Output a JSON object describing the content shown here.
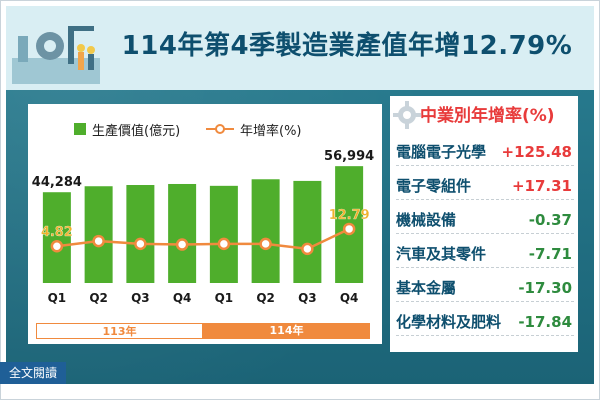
{
  "title": "114年第4季製造業產值年增12.79%",
  "legend": {
    "bar_label": "生產價值(億元)",
    "line_label": "年增率(%)"
  },
  "year_labels": [
    "113年",
    "114年"
  ],
  "sector_panel": {
    "title": "中業別年增率(%)",
    "rows": [
      {
        "name": "電腦電子光學",
        "value": "+125.48"
      },
      {
        "name": "電子零組件",
        "value": "+17.31"
      },
      {
        "name": "機械設備",
        "value": "-0.37"
      },
      {
        "name": "汽車及其零件",
        "value": "-7.71"
      },
      {
        "name": "基本金屬",
        "value": "-17.30"
      },
      {
        "name": "化學材料及肥料",
        "value": "-17.84"
      }
    ]
  },
  "read_more_label": "全文閱讀",
  "colors": {
    "bar": "#4fae2c",
    "line": "#f08a3e",
    "positive": "#e83b3b",
    "negative": "#2e8b3e",
    "title": "#0e4f6e"
  },
  "chart_data": {
    "type": "bar",
    "categories": [
      "Q1",
      "Q2",
      "Q3",
      "Q4",
      "Q1",
      "Q2",
      "Q3",
      "Q4"
    ],
    "series": [
      {
        "name": "生產價值(億元)",
        "type": "bar",
        "values": [
          44284,
          47200,
          47800,
          48300,
          47400,
          50600,
          49800,
          56994
        ]
      },
      {
        "name": "年增率(%)",
        "type": "line",
        "values": [
          4.82,
          7.2,
          5.9,
          5.6,
          5.9,
          5.9,
          3.6,
          12.79
        ]
      }
    ],
    "data_labels": {
      "bar": [
        {
          "index": 0,
          "text": "44,284"
        },
        {
          "index": 7,
          "text": "56,994"
        }
      ],
      "line": [
        {
          "index": 0,
          "text": "4.82"
        },
        {
          "index": 7,
          "text": "12.79"
        }
      ]
    },
    "group_labels": [
      "113年",
      "114年"
    ],
    "bar_ylim": [
      0,
      60000
    ],
    "line_ylim": [
      -20,
      40
    ],
    "grid": false,
    "legend_position": "top"
  }
}
